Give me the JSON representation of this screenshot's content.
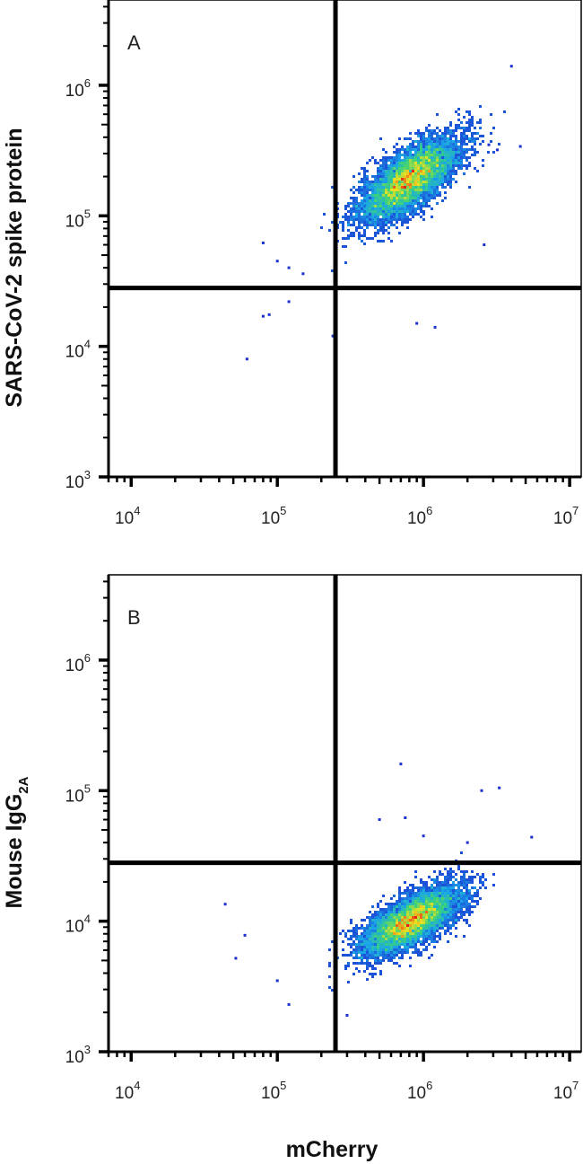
{
  "chart_data": [
    {
      "type": "scatter",
      "panel_label": "A",
      "xlabel": "mCherry",
      "ylabel": "SARS-CoV-2 spike protein",
      "xscale": "log",
      "yscale": "log",
      "xlim": [
        7000,
        12000000
      ],
      "ylim": [
        1000,
        4500000
      ],
      "x_ticks": [
        {
          "base": "10",
          "exp": "4"
        },
        {
          "base": "10",
          "exp": "5"
        },
        {
          "base": "10",
          "exp": "6"
        },
        {
          "base": "10",
          "exp": "7"
        }
      ],
      "y_ticks": [
        {
          "base": "10",
          "exp": "3"
        },
        {
          "base": "10",
          "exp": "4"
        },
        {
          "base": "10",
          "exp": "5"
        },
        {
          "base": "10",
          "exp": "6"
        }
      ],
      "gates": {
        "x": 250000,
        "y": 28000
      },
      "population": {
        "center_x": 800000,
        "center_y": 190000,
        "spread_log_x": 0.17,
        "spread_log_y": 0.16,
        "correlation": 0.72,
        "events": 6500
      },
      "outliers": [
        [
          62000,
          8000
        ],
        [
          80000,
          17000
        ],
        [
          88000,
          17500
        ],
        [
          120000,
          22000
        ],
        [
          240000,
          12000
        ],
        [
          900000,
          15000
        ],
        [
          1200000,
          14000
        ],
        [
          2800000,
          350000
        ],
        [
          3200000,
          320000
        ],
        [
          4000000,
          1400000
        ],
        [
          4600000,
          340000
        ],
        [
          80000,
          62000
        ],
        [
          100000,
          45000
        ],
        [
          120000,
          40000
        ],
        [
          150000,
          36000
        ],
        [
          2600000,
          60000
        ]
      ],
      "quadrants": {
        "upper_left_pct": null,
        "upper_right_pct": null,
        "lower_left_pct": null,
        "lower_right_pct": null
      },
      "colors": {
        "low": "#1c2fd0",
        "mid": "#1aa7e8",
        "midhigh": "#3ad27a",
        "high": "#f1e21d",
        "peak": "#e4231a"
      }
    },
    {
      "type": "scatter",
      "panel_label": "B",
      "xlabel": "mCherry",
      "ylabel": "Mouse IgG",
      "ylabel_subscript": "2A",
      "xscale": "log",
      "yscale": "log",
      "xlim": [
        7000,
        12000000
      ],
      "ylim": [
        1000,
        4500000
      ],
      "x_ticks": [
        {
          "base": "10",
          "exp": "4"
        },
        {
          "base": "10",
          "exp": "5"
        },
        {
          "base": "10",
          "exp": "6"
        },
        {
          "base": "10",
          "exp": "7"
        }
      ],
      "y_ticks": [
        {
          "base": "10",
          "exp": "3"
        },
        {
          "base": "10",
          "exp": "4"
        },
        {
          "base": "10",
          "exp": "5"
        },
        {
          "base": "10",
          "exp": "6"
        }
      ],
      "gates": {
        "x": 250000,
        "y": 28000
      },
      "population": {
        "center_x": 820000,
        "center_y": 10000,
        "spread_log_x": 0.17,
        "spread_log_y": 0.13,
        "correlation": 0.7,
        "events": 6500
      },
      "outliers": [
        [
          44000,
          13500
        ],
        [
          52000,
          5200
        ],
        [
          60000,
          7800
        ],
        [
          100000,
          3500
        ],
        [
          120000,
          2300
        ],
        [
          700000,
          160000
        ],
        [
          2500000,
          100000
        ],
        [
          3300000,
          105000
        ],
        [
          5500000,
          44000
        ],
        [
          500000,
          60000
        ],
        [
          750000,
          62000
        ],
        [
          1000000,
          45000
        ],
        [
          250000,
          2000
        ],
        [
          300000,
          1900
        ],
        [
          2000000,
          40000
        ]
      ],
      "quadrants": {
        "upper_left_pct": null,
        "upper_right_pct": null,
        "lower_left_pct": null,
        "lower_right_pct": null
      },
      "colors": {
        "low": "#1c2fd0",
        "mid": "#1aa7e8",
        "midhigh": "#3ad27a",
        "high": "#f1e21d",
        "peak": "#e4231a"
      }
    }
  ],
  "figure": {
    "shared_xlabel": "mCherry"
  }
}
